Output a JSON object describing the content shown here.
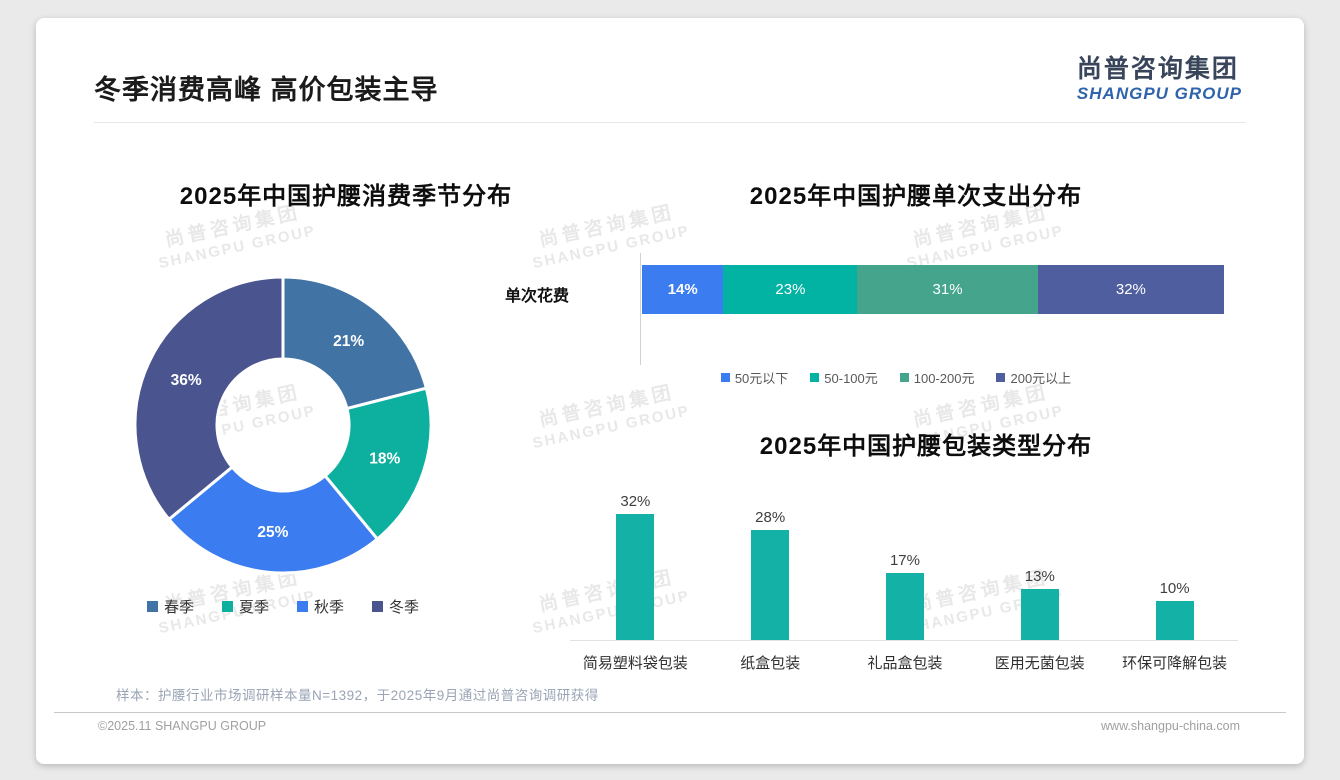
{
  "page": {
    "title": "冬季消费高峰 高价包装主导",
    "logo": {
      "cn": "尚普咨询集团",
      "en": "SHANGPU GROUP"
    },
    "watermark": {
      "cn": "尚普咨询集团",
      "en": "SHANGPU GROUP"
    },
    "footnote": "样本：护腰行业市场调研样本量N=1392，于2025年9月通过尚普咨询调研获得",
    "footer": {
      "left": "©2025.11 SHANGPU GROUP",
      "right": "www.shangpu-china.com"
    }
  },
  "colors": {
    "steel_blue": "#4273a5",
    "teal": "#0db09e",
    "bright_blue": "#3b7cf0",
    "slate_blue": "#4a5590",
    "sea_green": "#45a48c",
    "stacked_slate": "#4e5e9e",
    "bar_teal": "#14b2a6"
  },
  "chart_data": [
    {
      "type": "pie",
      "subtype": "donut",
      "title": "2025年中国护腰消费季节分布",
      "categories": [
        "春季",
        "夏季",
        "秋季",
        "冬季"
      ],
      "values": [
        21,
        18,
        25,
        36
      ],
      "labels": [
        "21%",
        "18%",
        "25%",
        "36%"
      ],
      "colors": [
        "#4273a5",
        "#0db09e",
        "#3b7cf0",
        "#4a5590"
      ],
      "start_angle": "top",
      "direction": "clockwise",
      "legend_position": "bottom"
    },
    {
      "type": "bar",
      "subtype": "stacked-horizontal",
      "title": "2025年中国护腰单次支出分布",
      "row_label": "单次花费",
      "categories": [
        "50元以下",
        "50-100元",
        "100-200元",
        "200元以上"
      ],
      "values": [
        14,
        23,
        31,
        32
      ],
      "labels": [
        "14%",
        "23%",
        "31%",
        "32%"
      ],
      "colors": [
        "#3b7cf0",
        "#02b2a2",
        "#45a48c",
        "#4e5e9e"
      ],
      "legend_position": "bottom"
    },
    {
      "type": "bar",
      "title": "2025年中国护腰包装类型分布",
      "categories": [
        "简易塑料袋包装",
        "纸盒包装",
        "礼品盒包装",
        "医用无菌包装",
        "环保可降解包装"
      ],
      "values": [
        32,
        28,
        17,
        13,
        10
      ],
      "labels": [
        "32%",
        "28%",
        "17%",
        "13%",
        "10%"
      ],
      "bar_color": "#14b2a6",
      "ylim": [
        0,
        35
      ],
      "grid": false
    }
  ]
}
